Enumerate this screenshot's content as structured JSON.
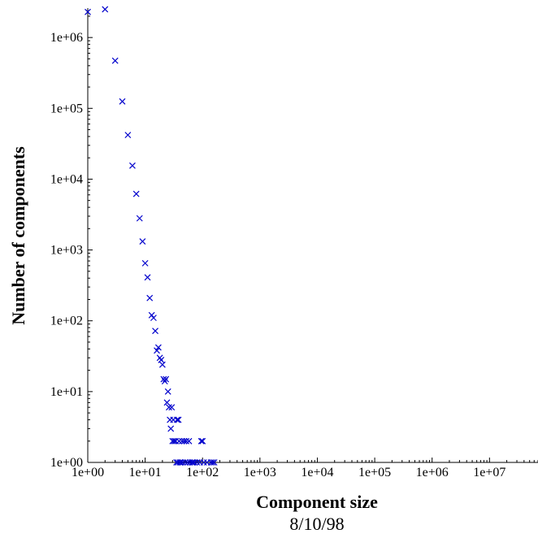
{
  "chart_data": {
    "type": "scatter",
    "title": "",
    "xlabel": "Component size",
    "ylabel": "Number of components",
    "subtitle": "8/10/98",
    "x_scale": "log",
    "y_scale": "log",
    "xlim": [
      1,
      70000000
    ],
    "ylim": [
      1,
      2600000
    ],
    "grid": false,
    "legend": "none",
    "marker": "x",
    "color": "#0000cc",
    "x_ticks": [
      {
        "value": 1,
        "label": "1e+00"
      },
      {
        "value": 10,
        "label": "1e+01"
      },
      {
        "value": 100,
        "label": "1e+02"
      },
      {
        "value": 1000,
        "label": "1e+03"
      },
      {
        "value": 10000,
        "label": "1e+04"
      },
      {
        "value": 100000,
        "label": "1e+05"
      },
      {
        "value": 1000000,
        "label": "1e+06"
      },
      {
        "value": 10000000,
        "label": "1e+07"
      }
    ],
    "y_ticks": [
      {
        "value": 1,
        "label": "1e+00"
      },
      {
        "value": 10,
        "label": "1e+01"
      },
      {
        "value": 100,
        "label": "1e+02"
      },
      {
        "value": 1000,
        "label": "1e+03"
      },
      {
        "value": 10000,
        "label": "1e+04"
      },
      {
        "value": 100000,
        "label": "1e+05"
      },
      {
        "value": 1000000,
        "label": "1e+06"
      }
    ],
    "series": [
      {
        "points": [
          [
            1,
            2300000
          ],
          [
            2,
            2500000
          ],
          [
            3,
            470000
          ],
          [
            4,
            125000
          ],
          [
            5,
            42000
          ],
          [
            6,
            15500
          ],
          [
            7,
            6200
          ],
          [
            8,
            2800
          ],
          [
            9,
            1320
          ],
          [
            10,
            650
          ],
          [
            11,
            410
          ],
          [
            12,
            210
          ],
          [
            13,
            120
          ],
          [
            14,
            110
          ],
          [
            15,
            72
          ],
          [
            16,
            38
          ],
          [
            17,
            42
          ],
          [
            18,
            30
          ],
          [
            19,
            28
          ],
          [
            20,
            24
          ],
          [
            21,
            15
          ],
          [
            22,
            14
          ],
          [
            23,
            15
          ],
          [
            24,
            7
          ],
          [
            25,
            10
          ],
          [
            26,
            6
          ],
          [
            27,
            4
          ],
          [
            28,
            3
          ],
          [
            29,
            6
          ],
          [
            30,
            2
          ],
          [
            31,
            4
          ],
          [
            32,
            2
          ],
          [
            34,
            2
          ],
          [
            35,
            1
          ],
          [
            36,
            4
          ],
          [
            37,
            1
          ],
          [
            38,
            4
          ],
          [
            39,
            2
          ],
          [
            40,
            1
          ],
          [
            42,
            1
          ],
          [
            44,
            2
          ],
          [
            45,
            1
          ],
          [
            48,
            2
          ],
          [
            50,
            1
          ],
          [
            52,
            2
          ],
          [
            55,
            1
          ],
          [
            58,
            2
          ],
          [
            60,
            1
          ],
          [
            65,
            1
          ],
          [
            68,
            1
          ],
          [
            72,
            1
          ],
          [
            80,
            1
          ],
          [
            90,
            1
          ],
          [
            95,
            2
          ],
          [
            100,
            2
          ],
          [
            105,
            1
          ],
          [
            120,
            1
          ],
          [
            140,
            1
          ],
          [
            150,
            1
          ],
          [
            160,
            1
          ]
        ]
      }
    ]
  }
}
